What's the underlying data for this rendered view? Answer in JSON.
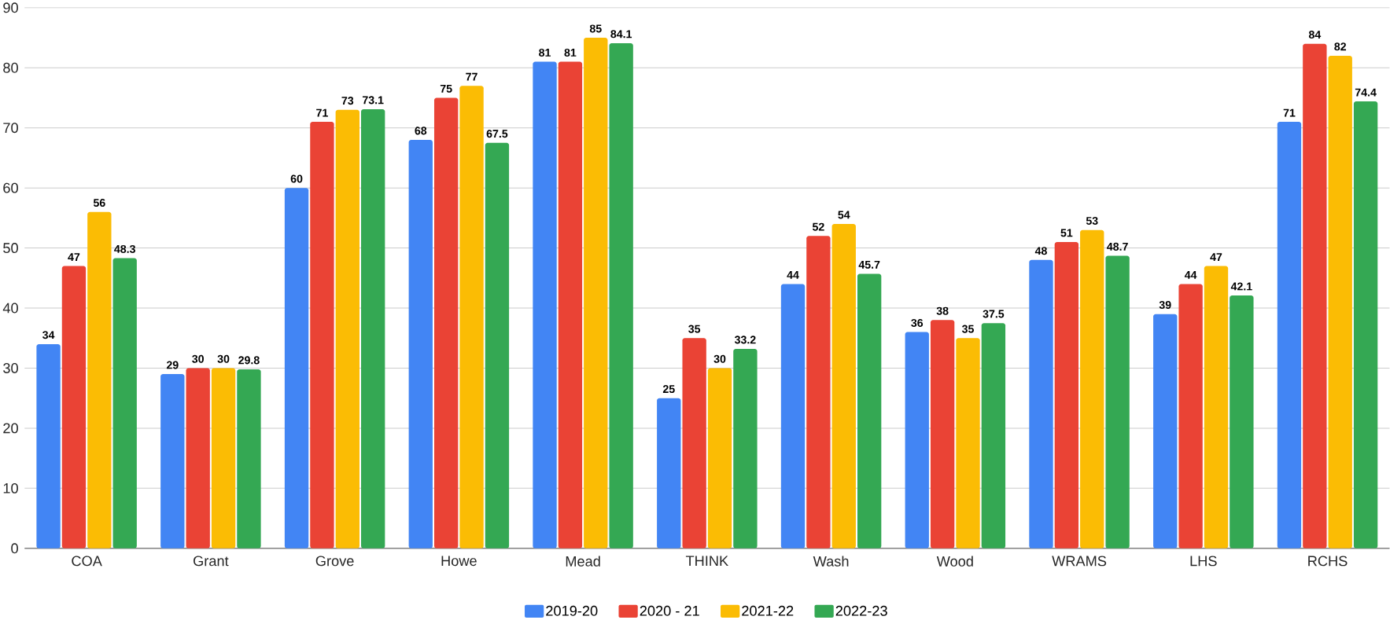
{
  "chart_data": {
    "type": "bar",
    "categories": [
      "COA",
      "Grant",
      "Grove",
      "Howe",
      "Mead",
      "THINK",
      "Wash",
      "Wood",
      "WRAMS",
      "LHS",
      "RCHS"
    ],
    "series": [
      {
        "name": "2019-20",
        "color": "#4285f4",
        "values": [
          34,
          29,
          60,
          68,
          81,
          25,
          44,
          36,
          48,
          39,
          71
        ]
      },
      {
        "name": "2020 - 21",
        "color": "#ea4335",
        "values": [
          47,
          30,
          71,
          75,
          81,
          35,
          52,
          38,
          51,
          44,
          84
        ]
      },
      {
        "name": "2021-22",
        "color": "#fbbc04",
        "values": [
          56,
          30,
          73,
          77,
          85,
          30,
          54,
          35,
          53,
          47,
          82
        ]
      },
      {
        "name": "2022-23",
        "color": "#34a853",
        "values": [
          48.3,
          29.8,
          73.1,
          67.5,
          84.1,
          33.2,
          45.7,
          37.5,
          48.7,
          42.1,
          74.4
        ]
      }
    ],
    "ylim": [
      0,
      90
    ],
    "yticks": [
      0,
      10,
      20,
      30,
      40,
      50,
      60,
      70,
      80,
      90
    ],
    "grid": "y",
    "legend": "bottom",
    "data_labels": true
  }
}
